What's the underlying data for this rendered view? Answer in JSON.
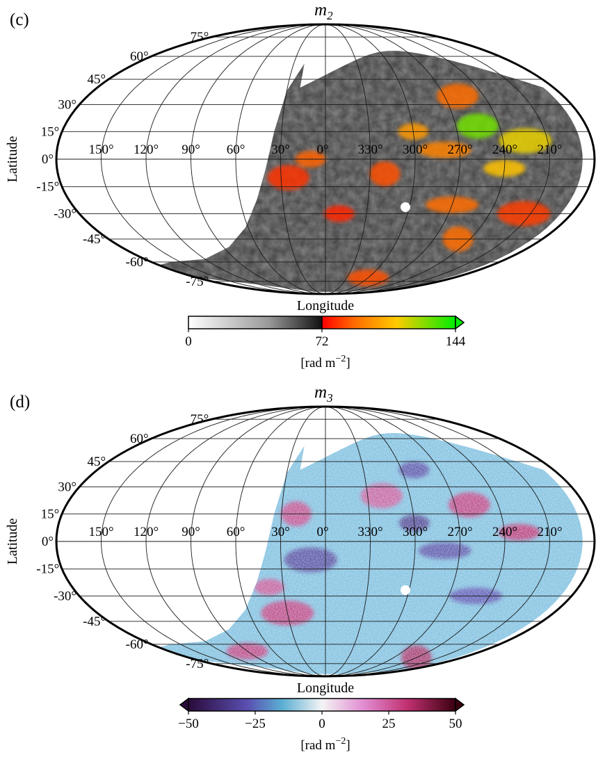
{
  "chart_data": [
    {
      "type": "heatmap",
      "projection": "mollweide",
      "panel": "(c)",
      "title": "m",
      "title_subscript": "2",
      "xlabel": "Longitude",
      "ylabel": "Latitude",
      "lon_ticks": [
        "150°",
        "120°",
        "90°",
        "60°",
        "30°",
        "0°",
        "330°",
        "300°",
        "270°",
        "240°",
        "210°"
      ],
      "lon_values": [
        150,
        120,
        90,
        60,
        30,
        0,
        -30,
        -60,
        -90,
        -120,
        -150
      ],
      "lat_ticks": [
        "75°",
        "60°",
        "45°",
        "30°",
        "15°",
        "0°",
        "-15°",
        "-30°",
        "-45°",
        "-60°",
        "-75°"
      ],
      "lat_values": [
        75,
        60,
        45,
        30,
        15,
        0,
        -15,
        -30,
        -45,
        -60,
        -75
      ],
      "colorbar": {
        "label_prefix": "[rad m",
        "label_exp": "−2",
        "label_suffix": "]",
        "ticks": [
          "0",
          "72",
          "144"
        ],
        "tick_values": [
          0,
          72,
          144
        ],
        "range": [
          0,
          144
        ],
        "extend": "max",
        "colors": [
          "#ffffff",
          "#9a9a9a",
          "#111111",
          "#ff0000",
          "#ff6a00",
          "#ffcc00",
          "#00ee00"
        ],
        "stops": [
          0,
          0.3,
          0.5,
          0.5,
          0.62,
          0.78,
          1.0
        ]
      },
      "base_color": "#7f7f7f",
      "features": [
        {
          "lon": -60,
          "lat": 15,
          "value": 100
        },
        {
          "lon": -105,
          "lat": 18,
          "value": 130
        },
        {
          "lon": -80,
          "lat": 5,
          "value": 95
        },
        {
          "lon": -40,
          "lat": -8,
          "value": 85
        },
        {
          "lon": -120,
          "lat": -5,
          "value": 110
        },
        {
          "lon": -135,
          "lat": 10,
          "value": 115
        },
        {
          "lon": 10,
          "lat": 0,
          "value": 88
        },
        {
          "lon": 25,
          "lat": -10,
          "value": 80
        },
        {
          "lon": -90,
          "lat": -25,
          "value": 90
        },
        {
          "lon": -110,
          "lat": -45,
          "value": 90
        },
        {
          "lon": -60,
          "lat": -72,
          "value": 85
        },
        {
          "lon": -145,
          "lat": -30,
          "value": 82
        },
        {
          "lon": -10,
          "lat": -30,
          "value": 78
        },
        {
          "lon": -100,
          "lat": 35,
          "value": 90
        }
      ]
    },
    {
      "type": "heatmap",
      "projection": "mollweide",
      "panel": "(d)",
      "title": "m",
      "title_subscript": "3",
      "xlabel": "Longitude",
      "ylabel": "Latitude",
      "lon_ticks": [
        "150°",
        "120°",
        "90°",
        "60°",
        "30°",
        "0°",
        "330°",
        "300°",
        "270°",
        "240°",
        "210°"
      ],
      "lon_values": [
        150,
        120,
        90,
        60,
        30,
        0,
        -30,
        -60,
        -90,
        -120,
        -150
      ],
      "lat_ticks": [
        "75°",
        "60°",
        "45°",
        "30°",
        "15°",
        "0°",
        "-15°",
        "-30°",
        "-45°",
        "-60°",
        "-75°"
      ],
      "lat_values": [
        75,
        60,
        45,
        30,
        15,
        0,
        -15,
        -30,
        -45,
        -60,
        -75
      ],
      "colorbar": {
        "label_prefix": "[rad m",
        "label_exp": "−2",
        "label_suffix": "]",
        "ticks": [
          "−50",
          "−25",
          "0",
          "25",
          "50"
        ],
        "tick_values": [
          -50,
          -25,
          0,
          25,
          50
        ],
        "range": [
          -50,
          50
        ],
        "extend": "both",
        "colors": [
          "#2a0a3a",
          "#5a4fb0",
          "#5aaed3",
          "#f4f4f4",
          "#e08ad0",
          "#c03070",
          "#3a0010"
        ],
        "stops": [
          0,
          0.22,
          0.35,
          0.5,
          0.66,
          0.82,
          1.0
        ]
      },
      "base_color": "#7fc0e0",
      "features": [
        {
          "lon": -60,
          "lat": 10,
          "value": -35
        },
        {
          "lon": -100,
          "lat": 20,
          "value": 30
        },
        {
          "lon": -80,
          "lat": -5,
          "value": -30
        },
        {
          "lon": 20,
          "lat": 15,
          "value": 28
        },
        {
          "lon": -130,
          "lat": 5,
          "value": 32
        },
        {
          "lon": 30,
          "lat": -40,
          "value": 30
        },
        {
          "lon": 40,
          "lat": -25,
          "value": 26
        },
        {
          "lon": -40,
          "lat": 25,
          "value": 25
        },
        {
          "lon": -110,
          "lat": -30,
          "value": -28
        },
        {
          "lon": -120,
          "lat": -70,
          "value": 35
        },
        {
          "lon": 90,
          "lat": -65,
          "value": 30
        },
        {
          "lon": 10,
          "lat": -10,
          "value": -32
        },
        {
          "lon": -70,
          "lat": 40,
          "value": -30
        }
      ]
    }
  ]
}
